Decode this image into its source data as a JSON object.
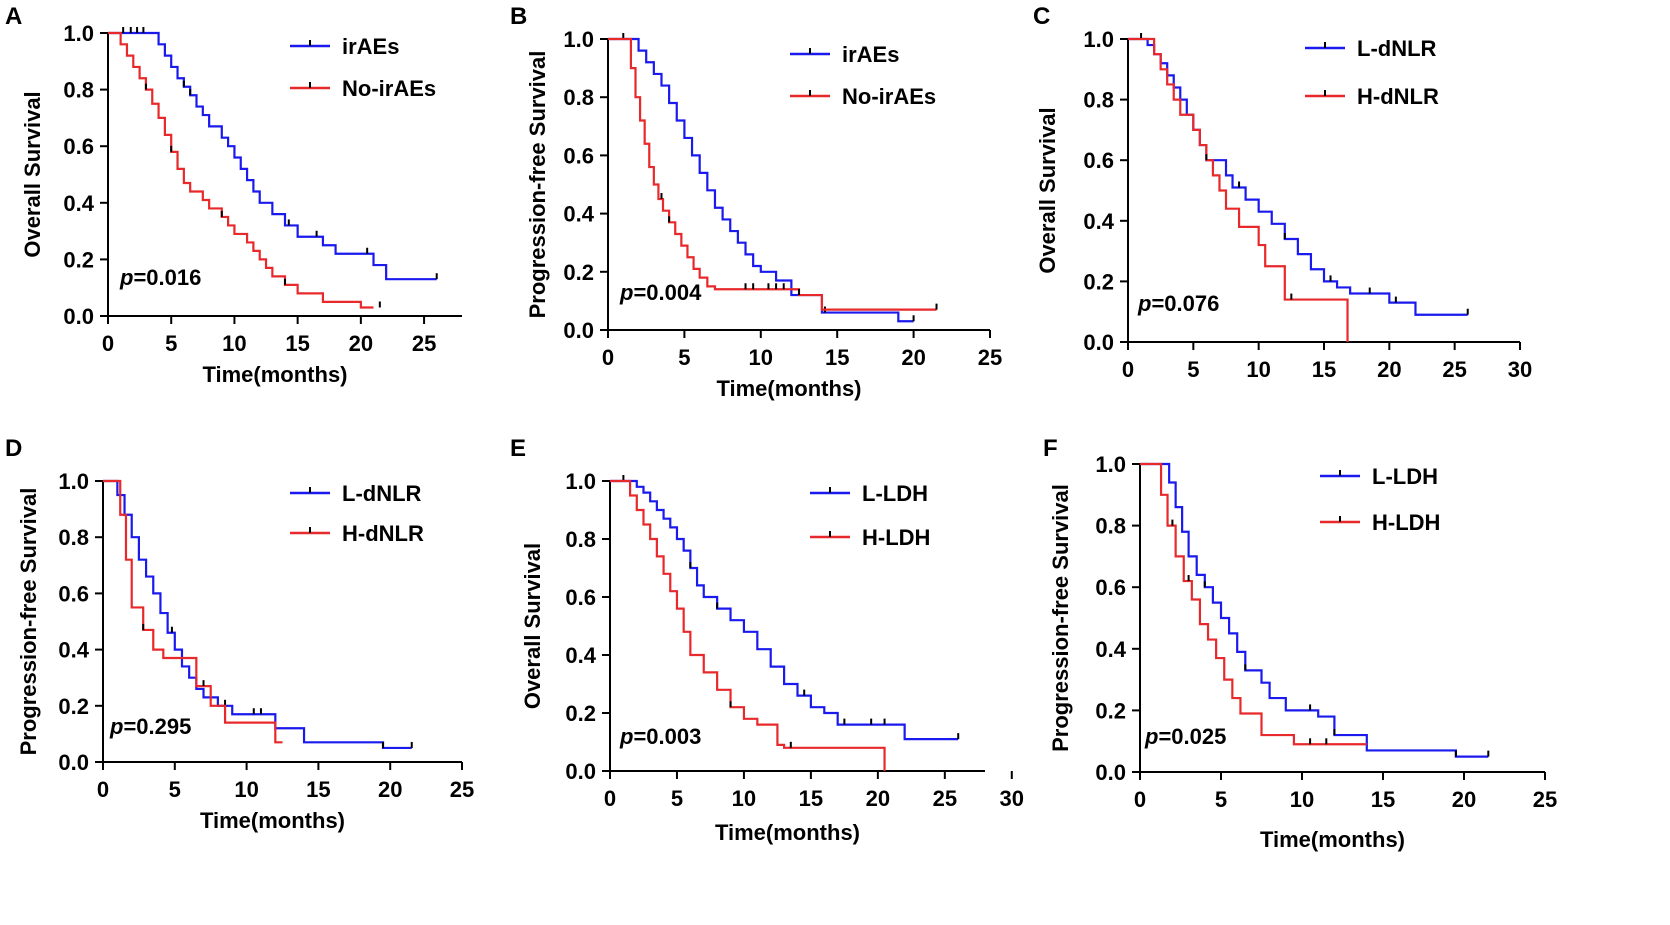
{
  "colors": {
    "blue": "#1a1aee",
    "red": "#e8292b",
    "axis": "#000000"
  },
  "chart_data": [
    {
      "letter": "A",
      "type": "line",
      "step": true,
      "title": "",
      "xlabel": "Time(months)",
      "ylabel": "Overall Survival",
      "xlim": [
        0,
        28
      ],
      "ylim": [
        0,
        1.0
      ],
      "xticks": [
        0,
        5,
        10,
        15,
        20,
        25
      ],
      "yticks": [
        0.0,
        0.2,
        0.4,
        0.6,
        0.8,
        1.0
      ],
      "legend_position": "top-right",
      "p_prefix": "p",
      "p_value": "=0.016",
      "series": [
        {
          "name": "irAEs",
          "color": "blue",
          "x": [
            0,
            3.5,
            4.0,
            4.5,
            5.0,
            5.5,
            6.0,
            6.5,
            7.0,
            7.5,
            8.0,
            9.0,
            9.5,
            10.0,
            10.5,
            11.0,
            11.5,
            12.0,
            13.0,
            14.0,
            15.0,
            17.0,
            18.0,
            21.0,
            22.0,
            26.0
          ],
          "y": [
            1.0,
            1.0,
            0.96,
            0.92,
            0.88,
            0.84,
            0.81,
            0.78,
            0.74,
            0.71,
            0.67,
            0.63,
            0.6,
            0.56,
            0.52,
            0.48,
            0.44,
            0.4,
            0.36,
            0.32,
            0.28,
            0.25,
            0.22,
            0.18,
            0.13,
            0.13
          ],
          "censor_x": [
            1.2,
            1.8,
            2.3,
            2.8,
            6.0,
            6.5,
            14.3,
            16.5,
            20.5,
            26.0
          ]
        },
        {
          "name": "No-irAEs",
          "color": "red",
          "x": [
            0,
            1.0,
            1.5,
            2.0,
            2.5,
            3.0,
            3.5,
            4.0,
            4.5,
            5.0,
            5.5,
            6.0,
            6.5,
            7.5,
            8.0,
            9.0,
            9.5,
            10.0,
            11.0,
            11.5,
            12.0,
            12.5,
            13.0,
            14.0,
            15.0,
            17.0,
            20.0,
            21.0
          ],
          "y": [
            1.0,
            0.96,
            0.92,
            0.88,
            0.84,
            0.8,
            0.75,
            0.7,
            0.64,
            0.58,
            0.52,
            0.47,
            0.44,
            0.41,
            0.38,
            0.35,
            0.32,
            0.29,
            0.26,
            0.23,
            0.2,
            0.17,
            0.14,
            0.11,
            0.08,
            0.05,
            0.03,
            0.03
          ],
          "censor_x": [
            3.0,
            5.0,
            9.0,
            14.0,
            21.5
          ]
        }
      ]
    },
    {
      "letter": "B",
      "type": "line",
      "step": true,
      "title": "",
      "xlabel": "Time(months)",
      "ylabel": "Progression-free Survival",
      "xlim": [
        0,
        25
      ],
      "ylim": [
        0,
        1.0
      ],
      "xticks": [
        0,
        5,
        10,
        15,
        20,
        25
      ],
      "yticks": [
        0.0,
        0.2,
        0.4,
        0.6,
        0.8,
        1.0
      ],
      "legend_position": "top-right",
      "p_prefix": "p",
      "p_value": "=0.004",
      "series": [
        {
          "name": "irAEs",
          "color": "blue",
          "x": [
            0,
            2.0,
            2.5,
            3.0,
            3.5,
            4.0,
            4.5,
            5.0,
            5.5,
            6.0,
            6.5,
            7.0,
            7.5,
            8.0,
            8.5,
            9.0,
            9.5,
            10.0,
            11.0,
            12.0,
            14.0,
            17.0,
            19.0,
            20.0
          ],
          "y": [
            1.0,
            0.96,
            0.92,
            0.88,
            0.84,
            0.78,
            0.72,
            0.66,
            0.6,
            0.54,
            0.48,
            0.42,
            0.38,
            0.34,
            0.3,
            0.26,
            0.22,
            0.2,
            0.17,
            0.12,
            0.06,
            0.06,
            0.03,
            0.03
          ],
          "censor_x": [
            1.0,
            14.2,
            20.0
          ]
        },
        {
          "name": "No-irAEs",
          "color": "red",
          "x": [
            0,
            1.5,
            1.8,
            2.1,
            2.4,
            2.7,
            3.0,
            3.3,
            3.6,
            4.0,
            4.4,
            4.8,
            5.2,
            5.6,
            6.0,
            6.5,
            7.0,
            10.0,
            12.5,
            14.0,
            21.5
          ],
          "y": [
            1.0,
            0.9,
            0.8,
            0.72,
            0.64,
            0.56,
            0.5,
            0.45,
            0.41,
            0.37,
            0.33,
            0.29,
            0.25,
            0.21,
            0.18,
            0.15,
            0.14,
            0.14,
            0.12,
            0.07,
            0.07
          ],
          "censor_x": [
            3.5,
            4.0,
            9.0,
            9.5,
            10.5,
            11.0,
            11.5,
            12.5,
            21.5
          ]
        }
      ]
    },
    {
      "letter": "C",
      "type": "line",
      "step": true,
      "title": "",
      "xlabel": "",
      "ylabel": "Overall Survival",
      "xlim": [
        0,
        30
      ],
      "ylim": [
        0,
        1.0
      ],
      "xticks": [
        0,
        5,
        10,
        15,
        20,
        25,
        30
      ],
      "yticks": [
        0.0,
        0.2,
        0.4,
        0.6,
        0.8,
        1.0
      ],
      "legend_position": "top-right",
      "p_prefix": "p",
      "p_value": "=0.076",
      "series": [
        {
          "name": "L-dNLR",
          "color": "blue",
          "x": [
            0,
            1.5,
            2.0,
            2.5,
            3.0,
            3.5,
            4.0,
            4.5,
            5.0,
            5.5,
            6.0,
            7.5,
            8.0,
            9.0,
            10.0,
            11.0,
            12.0,
            13.0,
            14.0,
            15.0,
            16.0,
            17.0,
            20.0,
            22.0,
            26.0
          ],
          "y": [
            1.0,
            0.98,
            0.95,
            0.92,
            0.88,
            0.84,
            0.8,
            0.75,
            0.7,
            0.65,
            0.6,
            0.55,
            0.51,
            0.47,
            0.43,
            0.39,
            0.34,
            0.29,
            0.24,
            0.2,
            0.18,
            0.16,
            0.13,
            0.09,
            0.09
          ],
          "censor_x": [
            1.0,
            8.5,
            12.0,
            15.5,
            18.5,
            20.5,
            26.0
          ]
        },
        {
          "name": "H-dNLR",
          "color": "red",
          "x": [
            0,
            2.0,
            2.5,
            3.0,
            3.5,
            4.0,
            5.0,
            5.5,
            6.0,
            6.5,
            7.0,
            7.5,
            8.5,
            10.0,
            10.5,
            12.0,
            16.8
          ],
          "y": [
            1.0,
            0.95,
            0.9,
            0.85,
            0.8,
            0.75,
            0.7,
            0.65,
            0.6,
            0.55,
            0.5,
            0.44,
            0.38,
            0.32,
            0.25,
            0.14,
            0.0
          ],
          "censor_x": [
            6.0,
            12.5
          ]
        }
      ]
    },
    {
      "letter": "D",
      "type": "line",
      "step": true,
      "title": "",
      "xlabel": "Time(months)",
      "ylabel": "Progression-free Survival",
      "xlim": [
        0,
        25
      ],
      "ylim": [
        0,
        1.0
      ],
      "xticks": [
        0,
        5,
        10,
        15,
        20,
        25
      ],
      "yticks": [
        0.0,
        0.2,
        0.4,
        0.6,
        0.8,
        1.0
      ],
      "legend_position": "top-right",
      "p_prefix": "p",
      "p_value": "=0.295",
      "series": [
        {
          "name": "L-dNLR",
          "color": "blue",
          "x": [
            0,
            1.0,
            1.5,
            2.0,
            2.5,
            3.0,
            3.5,
            4.0,
            4.5,
            5.0,
            5.5,
            6.0,
            6.5,
            7.0,
            8.0,
            9.0,
            12.0,
            14.0,
            19.5,
            21.5
          ],
          "y": [
            1.0,
            0.95,
            0.88,
            0.8,
            0.72,
            0.66,
            0.6,
            0.53,
            0.46,
            0.4,
            0.34,
            0.3,
            0.26,
            0.23,
            0.2,
            0.17,
            0.12,
            0.07,
            0.05,
            0.05
          ],
          "censor_x": [
            4.8,
            8.5,
            10.5,
            11.0,
            19.5,
            21.5
          ]
        },
        {
          "name": "H-dNLR",
          "color": "red",
          "x": [
            0,
            1.2,
            1.6,
            2.0,
            2.8,
            3.5,
            4.2,
            5.5,
            6.5,
            7.5,
            8.5,
            12.0,
            12.5
          ],
          "y": [
            1.0,
            0.88,
            0.72,
            0.55,
            0.47,
            0.4,
            0.37,
            0.37,
            0.27,
            0.2,
            0.14,
            0.07,
            0.07
          ],
          "censor_x": [
            2.8,
            7.0
          ]
        }
      ]
    },
    {
      "letter": "E",
      "type": "line",
      "step": true,
      "title": "",
      "xlabel": "Time(months)",
      "ylabel": "Overall Survival",
      "xlim": [
        0,
        28
      ],
      "ylim": [
        0,
        1.0
      ],
      "xticks": [
        0,
        5,
        10,
        15,
        20,
        25,
        30
      ],
      "yticks": [
        0.0,
        0.2,
        0.4,
        0.6,
        0.8,
        1.0
      ],
      "legend_position": "top-right",
      "p_prefix": "p",
      "p_value": "=0.003",
      "series": [
        {
          "name": "L-LDH",
          "color": "blue",
          "x": [
            0,
            2.0,
            2.5,
            3.0,
            3.5,
            4.0,
            4.5,
            5.0,
            5.5,
            6.0,
            6.5,
            7.0,
            8.0,
            9.0,
            10.0,
            11.0,
            12.0,
            13.0,
            14.0,
            15.0,
            16.0,
            17.0,
            20.0,
            22.0,
            26.0
          ],
          "y": [
            1.0,
            0.98,
            0.96,
            0.93,
            0.9,
            0.87,
            0.84,
            0.8,
            0.76,
            0.7,
            0.64,
            0.6,
            0.56,
            0.52,
            0.48,
            0.42,
            0.36,
            0.3,
            0.26,
            0.22,
            0.2,
            0.16,
            0.16,
            0.11,
            0.11
          ],
          "censor_x": [
            1.0,
            6.0,
            8.0,
            14.5,
            17.5,
            19.5,
            20.5,
            26.0
          ]
        },
        {
          "name": "H-LDH",
          "color": "red",
          "x": [
            0,
            1.5,
            2.0,
            2.5,
            3.0,
            3.5,
            4.0,
            4.5,
            5.0,
            5.5,
            6.0,
            7.0,
            8.0,
            9.0,
            10.0,
            11.0,
            12.5,
            13.0,
            20.5
          ],
          "y": [
            1.0,
            0.95,
            0.9,
            0.85,
            0.8,
            0.74,
            0.68,
            0.62,
            0.56,
            0.48,
            0.4,
            0.34,
            0.28,
            0.22,
            0.18,
            0.16,
            0.09,
            0.08,
            0.0
          ],
          "censor_x": [
            9.0,
            13.5
          ]
        }
      ]
    },
    {
      "letter": "F",
      "type": "line",
      "step": true,
      "title": "",
      "xlabel": "Time(months)",
      "ylabel": "Progression-free Survival",
      "xlim": [
        0,
        25
      ],
      "ylim": [
        0,
        1.0
      ],
      "xticks": [
        0,
        5,
        10,
        15,
        20,
        25
      ],
      "yticks": [
        0.0,
        0.2,
        0.4,
        0.6,
        0.8,
        1.0
      ],
      "legend_position": "top-right",
      "p_prefix": "p",
      "p_value": "=0.025",
      "series": [
        {
          "name": "L-LDH",
          "color": "blue",
          "x": [
            0,
            1.8,
            2.2,
            2.6,
            3.0,
            3.5,
            4.0,
            4.5,
            5.0,
            5.5,
            6.0,
            6.5,
            7.5,
            8.0,
            9.0,
            11.0,
            12.0,
            14.0,
            19.5,
            21.5
          ],
          "y": [
            1.0,
            0.94,
            0.86,
            0.78,
            0.7,
            0.64,
            0.6,
            0.55,
            0.5,
            0.45,
            0.39,
            0.33,
            0.29,
            0.24,
            0.2,
            0.18,
            0.12,
            0.07,
            0.05,
            0.05
          ],
          "censor_x": [
            4.0,
            6.5,
            10.5,
            12.0,
            19.5,
            21.5
          ]
        },
        {
          "name": "H-LDH",
          "color": "red",
          "x": [
            0,
            1.3,
            1.7,
            2.2,
            2.7,
            3.2,
            3.7,
            4.2,
            4.7,
            5.2,
            5.7,
            6.2,
            7.5,
            9.5,
            14.0
          ],
          "y": [
            1.0,
            0.9,
            0.8,
            0.7,
            0.62,
            0.56,
            0.48,
            0.43,
            0.37,
            0.3,
            0.24,
            0.19,
            0.12,
            0.09,
            0.09
          ],
          "censor_x": [
            2.0,
            3.0,
            10.5,
            11.5
          ]
        }
      ]
    }
  ]
}
